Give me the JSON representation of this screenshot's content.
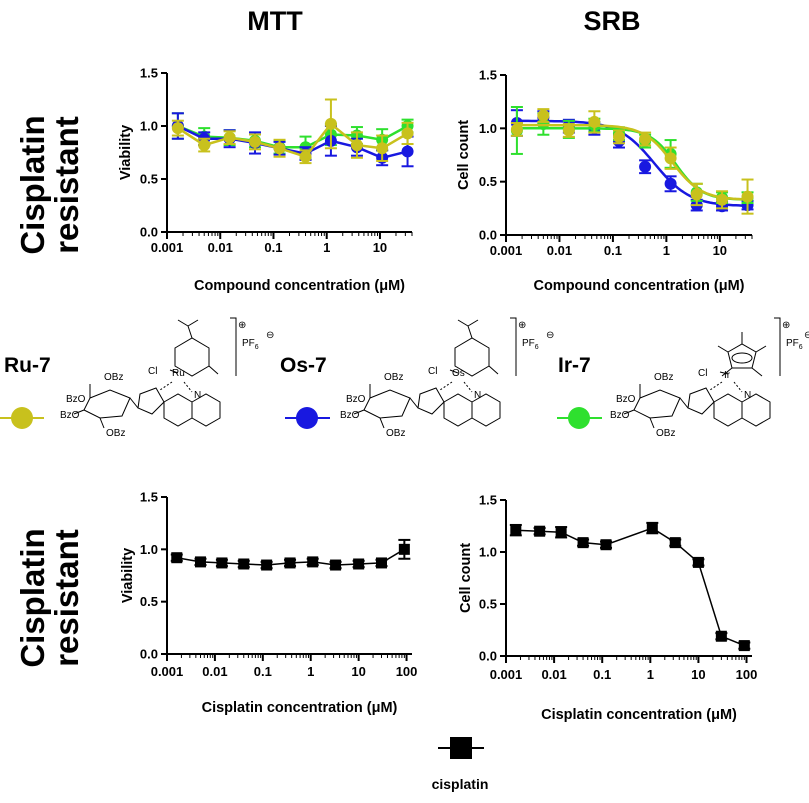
{
  "headers": {
    "left": "MTT",
    "right": "SRB"
  },
  "row_labels": {
    "top": [
      "Cisplatin",
      "resistant"
    ],
    "bottom": [
      "Cisplatin",
      "resistant"
    ]
  },
  "compounds": [
    {
      "name": "Ru-7",
      "metal": "Ru",
      "color": "#c8c11d"
    },
    {
      "name": "Os-7",
      "metal": "Os",
      "color": "#1818e0"
    },
    {
      "name": "Ir-7",
      "metal": "Ir",
      "color": "#2ee02e"
    }
  ],
  "structure_text": {
    "cl": "Cl",
    "bzo": "BzO",
    "obz": "OBz",
    "n": "N",
    "pf6": "PF",
    "pf6_sub": "6",
    "plus": "⊕",
    "minus": "⊖"
  },
  "legend": {
    "cisplatin_label": "cisplatin"
  },
  "chart_data": [
    {
      "id": "mtt-compound",
      "type": "scatter",
      "title": "MTT",
      "xlabel": "Compound concentration (μM)",
      "ylabel": "Viability",
      "xscale": "log",
      "xlim": [
        0.001,
        40
      ],
      "ylim": [
        0,
        1.5
      ],
      "xticks": [
        "0.001",
        "0.01",
        "0.1",
        "1",
        "10"
      ],
      "yticks": [
        "0.0",
        "0.5",
        "1.0",
        "1.5"
      ],
      "series": [
        {
          "name": "Ir-7",
          "color": "#2ee02e",
          "x": [
            0.0016,
            0.005,
            0.015,
            0.045,
            0.13,
            0.4,
            1.2,
            3.7,
            11,
            33
          ],
          "y": [
            1.0,
            0.9,
            0.89,
            0.86,
            0.8,
            0.8,
            0.92,
            0.91,
            0.87,
            1.0
          ],
          "err": [
            0.12,
            0.08,
            0.07,
            0.06,
            0.06,
            0.1,
            0.1,
            0.08,
            0.1,
            0.06
          ]
        },
        {
          "name": "Os-7",
          "color": "#1818e0",
          "x": [
            0.0016,
            0.005,
            0.015,
            0.045,
            0.13,
            0.4,
            1.2,
            3.7,
            11,
            33
          ],
          "y": [
            1.0,
            0.88,
            0.88,
            0.84,
            0.79,
            0.74,
            0.86,
            0.8,
            0.7,
            0.76
          ],
          "err": [
            0.12,
            0.06,
            0.08,
            0.1,
            0.06,
            0.06,
            0.14,
            0.08,
            0.07,
            0.14
          ]
        },
        {
          "name": "Ru-7",
          "color": "#c8c11d",
          "x": [
            0.0016,
            0.005,
            0.015,
            0.045,
            0.13,
            0.4,
            1.2,
            3.7,
            11,
            33
          ],
          "y": [
            0.98,
            0.82,
            0.89,
            0.85,
            0.79,
            0.71,
            1.02,
            0.82,
            0.79,
            0.93
          ],
          "err": [
            0.07,
            0.06,
            0.06,
            0.07,
            0.08,
            0.06,
            0.23,
            0.12,
            0.12,
            0.1
          ]
        }
      ]
    },
    {
      "id": "srb-compound",
      "type": "scatter",
      "title": "SRB",
      "xlabel": "Compound concentration (μM)",
      "ylabel": "Cell count",
      "xscale": "log",
      "xlim": [
        0.001,
        40
      ],
      "ylim": [
        0,
        1.5
      ],
      "xticks": [
        "0.001",
        "0.01",
        "0.1",
        "1",
        "10"
      ],
      "yticks": [
        "0.0",
        "0.5",
        "1.0",
        "1.5"
      ],
      "series": [
        {
          "name": "Os-7",
          "color": "#1818e0",
          "x": [
            0.0016,
            0.005,
            0.015,
            0.045,
            0.13,
            0.4,
            1.2,
            3.7,
            11,
            33
          ],
          "y": [
            1.05,
            1.1,
            1.02,
            1.0,
            0.88,
            0.64,
            0.48,
            0.28,
            0.27,
            0.28
          ],
          "err": [
            0.12,
            0.06,
            0.06,
            0.06,
            0.06,
            0.06,
            0.07,
            0.05,
            0.04,
            0.04
          ],
          "fit": {
            "top": 1.07,
            "bottom": 0.27,
            "ec50": 0.6,
            "hill": 1.3
          }
        },
        {
          "name": "Ir-7",
          "color": "#2ee02e",
          "x": [
            0.0016,
            0.005,
            0.015,
            0.045,
            0.13,
            0.4,
            1.2,
            3.7,
            11,
            33
          ],
          "y": [
            0.98,
            1.04,
            0.99,
            1.03,
            0.95,
            0.88,
            0.76,
            0.4,
            0.35,
            0.35
          ],
          "err": [
            0.22,
            0.1,
            0.08,
            0.06,
            0.06,
            0.06,
            0.13,
            0.08,
            0.05,
            0.05
          ],
          "fit": {
            "top": 1.0,
            "bottom": 0.33,
            "ec50": 1.5,
            "hill": 1.8
          }
        },
        {
          "name": "Ru-7",
          "color": "#c8c11d",
          "x": [
            0.0016,
            0.005,
            0.015,
            0.045,
            0.13,
            0.4,
            1.2,
            3.7,
            11,
            33
          ],
          "y": [
            0.99,
            1.12,
            0.98,
            1.06,
            0.92,
            0.9,
            0.72,
            0.38,
            0.33,
            0.36
          ],
          "err": [
            0.06,
            0.06,
            0.06,
            0.1,
            0.06,
            0.06,
            0.1,
            0.1,
            0.08,
            0.16
          ],
          "fit": {
            "top": 1.03,
            "bottom": 0.33,
            "ec50": 1.3,
            "hill": 1.6
          }
        }
      ]
    },
    {
      "id": "mtt-cisplatin",
      "type": "line",
      "title": "",
      "xlabel": "Cisplatin concentration (μM)",
      "ylabel": "Viability",
      "xscale": "log",
      "xlim": [
        0.001,
        130
      ],
      "ylim": [
        0,
        1.5
      ],
      "xticks": [
        "0.001",
        "0.01",
        "0.1",
        "1",
        "10",
        "100"
      ],
      "yticks": [
        "0.0",
        "0.5",
        "1.0",
        "1.5"
      ],
      "series": [
        {
          "name": "cisplatin",
          "color": "#000000",
          "x": [
            0.0016,
            0.005,
            0.014,
            0.04,
            0.12,
            0.37,
            1.1,
            3.3,
            10,
            30,
            90
          ],
          "y": [
            0.92,
            0.88,
            0.87,
            0.86,
            0.85,
            0.87,
            0.88,
            0.85,
            0.86,
            0.87,
            1.0
          ],
          "err": [
            0.03,
            0.03,
            0.03,
            0.03,
            0.03,
            0.03,
            0.03,
            0.03,
            0.03,
            0.03,
            0.09
          ]
        }
      ]
    },
    {
      "id": "srb-cisplatin",
      "type": "line",
      "title": "",
      "xlabel": "Cisplatin concentration (μM)",
      "ylabel": "Cell count",
      "xscale": "log",
      "xlim": [
        0.001,
        130
      ],
      "ylim": [
        0,
        1.5
      ],
      "xticks": [
        "0.001",
        "0.01",
        "0.1",
        "1",
        "10",
        "100"
      ],
      "yticks": [
        "0.0",
        "0.5",
        "1.0",
        "1.5"
      ],
      "series": [
        {
          "name": "cisplatin",
          "color": "#000000",
          "x": [
            0.0016,
            0.005,
            0.014,
            0.04,
            0.12,
            1.1,
            3.3,
            10,
            30,
            90
          ],
          "y": [
            1.21,
            1.2,
            1.19,
            1.09,
            1.07,
            1.23,
            1.09,
            0.9,
            0.19,
            0.1
          ],
          "err": [
            0.05,
            0.03,
            0.05,
            0.03,
            0.03,
            0.05,
            0.03,
            0.03,
            0.03,
            0.03
          ]
        }
      ]
    }
  ]
}
